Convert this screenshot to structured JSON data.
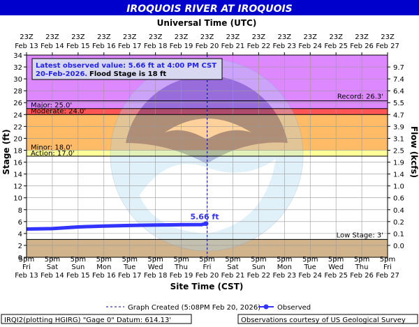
{
  "header": {
    "title": "IROQUOIS RIVER AT IROQUOIS"
  },
  "top_axis": {
    "title": "Universal Time (UTC)",
    "time_labels": [
      "23Z",
      "23Z",
      "23Z",
      "23Z",
      "23Z",
      "23Z",
      "23Z",
      "23Z",
      "23Z",
      "23Z",
      "23Z",
      "23Z",
      "23Z",
      "23Z",
      "23Z"
    ],
    "date_labels": [
      "Feb 13",
      "Feb 14",
      "Feb 15",
      "Feb 16",
      "Feb 17",
      "Feb 18",
      "Feb 19",
      "Feb 20",
      "Feb 21",
      "Feb 22",
      "Feb 23",
      "Feb 24",
      "Feb 25",
      "Feb 26",
      "Feb 27"
    ]
  },
  "bottom_axis": {
    "title": "Site Time (CST)",
    "time_labels": [
      "5pm",
      "5pm",
      "5pm",
      "5pm",
      "5pm",
      "5pm",
      "5pm",
      "5pm",
      "5pm",
      "5pm",
      "5pm",
      "5pm",
      "5pm",
      "5pm",
      "5pm"
    ],
    "day_labels": [
      "Fri",
      "Sat",
      "Sun",
      "Mon",
      "Tue",
      "Wed",
      "Thu",
      "Fri",
      "Sat",
      "Sun",
      "Mon",
      "Tue",
      "Wed",
      "Thu",
      "Fri"
    ],
    "date_labels": [
      "Feb 13",
      "Feb 14",
      "Feb 15",
      "Feb 16",
      "Feb 17",
      "Feb 18",
      "Feb 19",
      "Feb 20",
      "Feb 21",
      "Feb 22",
      "Feb 23",
      "Feb 24",
      "Feb 25",
      "Feb 26",
      "Feb 27"
    ]
  },
  "left_axis": {
    "title": "Stage (ft)"
  },
  "right_axis": {
    "title": "Flow (kcfs)"
  },
  "stages": {
    "major": "Major: 25.0'",
    "moderate": "Moderate: 24.0'",
    "minor": "Minor: 18.0'",
    "action": "Action: 17.0'",
    "record": "Record: 26.3'",
    "low": "Low Stage: 3'"
  },
  "callout": {
    "line1": "Latest observed value: 5.66 ft at 4:00 PM CST",
    "line2_date": "20-Feb-2026.",
    "line2_flood": "Flood Stage is 18 ft"
  },
  "latest_label": "5.66 ft",
  "legend": {
    "created": "Graph Created (5:08PM Feb 20, 2026)",
    "observed": "Observed"
  },
  "footer": {
    "left": "IRQI2(plotting HGIRG) \"Gage 0\" Datum: 614.13'",
    "right": "Observations courtesy of US Geological Survey"
  },
  "colors": {
    "header_bg": "#0000cc",
    "record_zone": "#dd88ff",
    "major_zone": "#cc33ff",
    "moderate_zone": "#ff5555",
    "minor_zone": "#ffbb66",
    "action_zone": "#ffff99",
    "low_zone": "#d2b48c",
    "observed": "#3333ff"
  },
  "chart_data": {
    "type": "line",
    "title": "IROQUOIS RIVER AT IROQUOIS",
    "xlabel": "Site Time (CST)",
    "ylabel": "Stage (ft)",
    "y2label": "Flow (kcfs)",
    "ylim": [
      0,
      34
    ],
    "ytick_labels": [
      "0",
      "2",
      "4",
      "6",
      "8",
      "10",
      "12",
      "14",
      "16",
      "18",
      "20",
      "22",
      "24",
      "26",
      "28",
      "30",
      "32",
      "34"
    ],
    "y2_ticks": [
      {
        "stage": 2.0,
        "label": "0.0"
      },
      {
        "stage": 4.0,
        "label": "0.1"
      },
      {
        "stage": 6.0,
        "label": "0.2"
      },
      {
        "stage": 8.0,
        "label": "0.4"
      },
      {
        "stage": 10.0,
        "label": "0.6"
      },
      {
        "stage": 12.0,
        "label": "1.0"
      },
      {
        "stage": 14.0,
        "label": "1.4"
      },
      {
        "stage": 16.0,
        "label": "1.9"
      },
      {
        "stage": 18.0,
        "label": "2.5"
      },
      {
        "stage": 20.0,
        "label": "3.1"
      },
      {
        "stage": 22.0,
        "label": "3.9"
      },
      {
        "stage": 24.0,
        "label": "4.7"
      },
      {
        "stage": 26.0,
        "label": "5.5"
      },
      {
        "stage": 28.0,
        "label": "6.4"
      },
      {
        "stage": 30.0,
        "label": "7.4"
      },
      {
        "stage": 32.0,
        "label": "9.7"
      }
    ],
    "x_range": [
      "Feb 13 5pm",
      "Feb 27 5pm"
    ],
    "graph_created": "Feb 20 5:08pm",
    "flood_categories": [
      {
        "name": "Low Stage",
        "from": 0,
        "to": 3
      },
      {
        "name": "Action",
        "from": 17,
        "to": 18
      },
      {
        "name": "Minor",
        "from": 18,
        "to": 24
      },
      {
        "name": "Moderate",
        "from": 24,
        "to": 25
      },
      {
        "name": "Major",
        "from": 25,
        "to": 34
      },
      {
        "name": "Record",
        "value": 26.3
      }
    ],
    "series": [
      {
        "name": "Observed",
        "points": [
          {
            "x": "Feb 13 5pm",
            "y": 4.75
          },
          {
            "x": "Feb 14 5pm",
            "y": 4.82
          },
          {
            "x": "Feb 15 5pm",
            "y": 5.1
          },
          {
            "x": "Feb 16 5pm",
            "y": 5.25
          },
          {
            "x": "Feb 17 5pm",
            "y": 5.35
          },
          {
            "x": "Feb 18 5pm",
            "y": 5.42
          },
          {
            "x": "Feb 19 5pm",
            "y": 5.47
          },
          {
            "x": "Feb 20 12pm",
            "y": 5.5
          },
          {
            "x": "Feb 20 4pm",
            "y": 5.66
          }
        ]
      }
    ]
  }
}
